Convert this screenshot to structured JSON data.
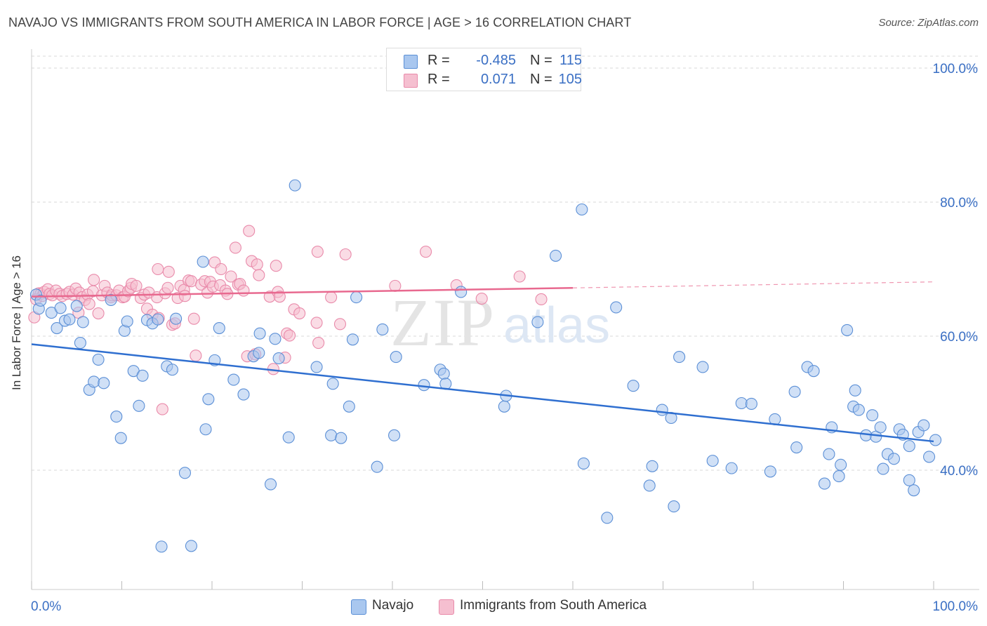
{
  "title": "NAVAJO VS IMMIGRANTS FROM SOUTH AMERICA IN LABOR FORCE | AGE > 16 CORRELATION CHART",
  "source": "Source: ZipAtlas.com",
  "watermark": {
    "zip": "ZIP",
    "atlas": "atlas"
  },
  "colors": {
    "navajo_fill": "#a9c7ef",
    "navajo_stroke": "#5b8fd6",
    "navajo_line": "#2f6fd0",
    "sa_fill": "#f5bfd0",
    "sa_stroke": "#e98aaa",
    "sa_line": "#e8698f",
    "axis_text": "#3a6fc4",
    "grid": "#d9d9d9"
  },
  "legend": {
    "rows": [
      {
        "r_key": "R =",
        "r_value": "-0.485",
        "n_key": "N =",
        "n_value": "115"
      },
      {
        "r_key": "R =",
        "r_value": "0.071",
        "n_key": "N =",
        "n_value": "105"
      }
    ]
  },
  "bottom_legend": [
    "Navajo",
    "Immigrants from South America"
  ],
  "chart_data": {
    "type": "scatter",
    "title": "NAVAJO VS IMMIGRANTS FROM SOUTH AMERICA IN LABOR FORCE | AGE > 16 CORRELATION CHART",
    "xlabel": "",
    "ylabel": "In Labor Force | Age > 16",
    "xlim": [
      0,
      100
    ],
    "ylim": [
      22,
      102
    ],
    "x_tick_labels": [
      "0.0%",
      "100.0%"
    ],
    "y_ticks": [
      40,
      60,
      80,
      100
    ],
    "y_tick_labels": [
      "40.0%",
      "60.0%",
      "80.0%",
      "100.0%"
    ],
    "grid": true,
    "legend_position": "top-center",
    "series": [
      {
        "name": "Navajo",
        "trend": {
          "x": [
            0,
            100
          ],
          "y": [
            58.8,
            44.3
          ]
        },
        "points": [
          [
            0.5,
            66.2
          ],
          [
            0.8,
            64.1
          ],
          [
            1,
            65.3
          ],
          [
            2.2,
            63.5
          ],
          [
            2.8,
            61.2
          ],
          [
            3.2,
            64.2
          ],
          [
            3.7,
            62.3
          ],
          [
            4.2,
            62.5
          ],
          [
            5,
            64.5
          ],
          [
            5.4,
            59
          ],
          [
            5.7,
            62.1
          ],
          [
            6.4,
            52
          ],
          [
            6.9,
            53.2
          ],
          [
            7.4,
            56.5
          ],
          [
            8,
            53
          ],
          [
            8.8,
            65.4
          ],
          [
            9.4,
            48
          ],
          [
            9.9,
            44.8
          ],
          [
            10.3,
            60.8
          ],
          [
            10.6,
            62.2
          ],
          [
            11.3,
            54.8
          ],
          [
            11.9,
            49.6
          ],
          [
            12.3,
            54.1
          ],
          [
            12.8,
            62.4
          ],
          [
            13.4,
            61.9
          ],
          [
            14,
            62.5
          ],
          [
            14.4,
            28.6
          ],
          [
            15,
            55.5
          ],
          [
            15.6,
            55
          ],
          [
            16,
            62.6
          ],
          [
            17,
            39.6
          ],
          [
            17.7,
            28.7
          ],
          [
            19,
            71.1
          ],
          [
            19.3,
            46.1
          ],
          [
            19.6,
            50.6
          ],
          [
            20.3,
            56.4
          ],
          [
            20.8,
            61.2
          ],
          [
            22.4,
            53.5
          ],
          [
            23.5,
            51.3
          ],
          [
            24.6,
            57
          ],
          [
            25.2,
            57.5
          ],
          [
            25.3,
            60.4
          ],
          [
            26.5,
            37.9
          ],
          [
            27,
            59.6
          ],
          [
            27.4,
            56.7
          ],
          [
            28.5,
            44.9
          ],
          [
            29.2,
            82.5
          ],
          [
            31.6,
            55.4
          ],
          [
            33.2,
            45.2
          ],
          [
            33.4,
            52.9
          ],
          [
            34.3,
            44.8
          ],
          [
            35.2,
            49.5
          ],
          [
            35.6,
            59.5
          ],
          [
            36,
            65.8
          ],
          [
            38.3,
            40.5
          ],
          [
            38.9,
            61
          ],
          [
            40.2,
            45.2
          ],
          [
            40.4,
            56.9
          ],
          [
            43.5,
            52.7
          ],
          [
            45.3,
            55
          ],
          [
            45.7,
            54.4
          ],
          [
            45.9,
            52.9
          ],
          [
            47.6,
            66.6
          ],
          [
            52.4,
            49.5
          ],
          [
            52.6,
            51.1
          ],
          [
            56.1,
            62.1
          ],
          [
            58.1,
            72
          ],
          [
            61,
            78.9
          ],
          [
            61.2,
            41
          ],
          [
            63.8,
            32.9
          ],
          [
            64.8,
            64.3
          ],
          [
            66.7,
            52.6
          ],
          [
            68.5,
            37.7
          ],
          [
            68.8,
            40.6
          ],
          [
            69.9,
            49
          ],
          [
            70.9,
            47.8
          ],
          [
            71.2,
            34.6
          ],
          [
            71.8,
            56.9
          ],
          [
            74.4,
            55.4
          ],
          [
            75.5,
            41.4
          ],
          [
            77.6,
            40.3
          ],
          [
            78.7,
            50
          ],
          [
            79.8,
            49.9
          ],
          [
            81.9,
            39.8
          ],
          [
            82.4,
            47.6
          ],
          [
            84.6,
            51.7
          ],
          [
            84.8,
            43.4
          ],
          [
            86,
            55.4
          ],
          [
            86.7,
            54.8
          ],
          [
            87.9,
            38
          ],
          [
            88.4,
            42.4
          ],
          [
            88.7,
            46.4
          ],
          [
            89.5,
            39.1
          ],
          [
            89.7,
            40.8
          ],
          [
            90.4,
            60.9
          ],
          [
            91.1,
            49.5
          ],
          [
            91.3,
            51.9
          ],
          [
            91.7,
            49
          ],
          [
            92.5,
            45.2
          ],
          [
            93.2,
            48.2
          ],
          [
            93.6,
            45
          ],
          [
            94.1,
            46.4
          ],
          [
            94.4,
            40.2
          ],
          [
            94.9,
            42.4
          ],
          [
            95.6,
            41.7
          ],
          [
            96.2,
            46.1
          ],
          [
            96.6,
            45.3
          ],
          [
            97.3,
            38.5
          ],
          [
            97.3,
            43.6
          ],
          [
            97.8,
            37
          ],
          [
            98.3,
            45.7
          ],
          [
            98.9,
            46.7
          ],
          [
            99.5,
            42
          ],
          [
            100.2,
            44.5
          ]
        ]
      },
      {
        "name": "Immigrants from South America",
        "trend": {
          "x": [
            0,
            60
          ],
          "y": [
            65.9,
            67.2
          ]
        },
        "trend_extension": {
          "x": [
            60,
            100
          ],
          "y": [
            67.2,
            68.1
          ]
        },
        "points": [
          [
            0.3,
            62.8
          ],
          [
            0.5,
            65.5
          ],
          [
            0.8,
            66.4
          ],
          [
            1,
            66.3
          ],
          [
            1.2,
            66
          ],
          [
            1.4,
            66.6
          ],
          [
            1.8,
            67
          ],
          [
            2,
            66.3
          ],
          [
            2.3,
            66.1
          ],
          [
            2.7,
            66.8
          ],
          [
            3.1,
            66.3
          ],
          [
            3.4,
            66
          ],
          [
            3.9,
            66.3
          ],
          [
            4.2,
            66.6
          ],
          [
            4.6,
            66.2
          ],
          [
            4.9,
            67.1
          ],
          [
            5.2,
            63.5
          ],
          [
            5.3,
            66.5
          ],
          [
            5.6,
            65.8
          ],
          [
            5.9,
            65.4
          ],
          [
            6.2,
            66.2
          ],
          [
            6.4,
            64.8
          ],
          [
            6.8,
            66.7
          ],
          [
            6.9,
            68.4
          ],
          [
            7.4,
            63.4
          ],
          [
            7.8,
            66.1
          ],
          [
            8.1,
            67.5
          ],
          [
            8.4,
            66.5
          ],
          [
            8.8,
            65.8
          ],
          [
            8.9,
            66.1
          ],
          [
            9.4,
            66.1
          ],
          [
            9.7,
            66.8
          ],
          [
            10.1,
            65.8
          ],
          [
            10.3,
            65.9
          ],
          [
            10.7,
            66.7
          ],
          [
            11,
            67.2
          ],
          [
            11.1,
            67.8
          ],
          [
            11.6,
            67.5
          ],
          [
            12.1,
            65.7
          ],
          [
            12.5,
            66.2
          ],
          [
            12.8,
            64.1
          ],
          [
            13,
            66.5
          ],
          [
            13.4,
            63.2
          ],
          [
            13.9,
            65.8
          ],
          [
            14,
            70
          ],
          [
            14.1,
            62.7
          ],
          [
            14.5,
            49.1
          ],
          [
            14.8,
            66.4
          ],
          [
            15.1,
            67.2
          ],
          [
            15.2,
            69.6
          ],
          [
            15.6,
            61.7
          ],
          [
            15.9,
            61.9
          ],
          [
            16.2,
            65.7
          ],
          [
            16.5,
            67.5
          ],
          [
            16.9,
            66.9
          ],
          [
            17,
            66
          ],
          [
            17.4,
            68.3
          ],
          [
            17.7,
            68.2
          ],
          [
            18,
            62.6
          ],
          [
            18.2,
            57.1
          ],
          [
            18.8,
            67.7
          ],
          [
            19.2,
            68.2
          ],
          [
            19.5,
            66.5
          ],
          [
            19.8,
            68.1
          ],
          [
            20.1,
            67.4
          ],
          [
            20.3,
            71
          ],
          [
            20.9,
            67.6
          ],
          [
            21,
            70
          ],
          [
            21.5,
            66.8
          ],
          [
            21.7,
            66.3
          ],
          [
            22.1,
            68.9
          ],
          [
            22.6,
            73.2
          ],
          [
            22.9,
            67.7
          ],
          [
            23.1,
            67.8
          ],
          [
            23.5,
            66.8
          ],
          [
            23.9,
            57
          ],
          [
            24.1,
            75.7
          ],
          [
            24.4,
            71.2
          ],
          [
            24.8,
            57.3
          ],
          [
            25,
            70.7
          ],
          [
            25.2,
            69.1
          ],
          [
            26.4,
            65.9
          ],
          [
            26.8,
            55.1
          ],
          [
            27.1,
            70.5
          ],
          [
            27.3,
            66.6
          ],
          [
            27.5,
            65.9
          ],
          [
            28.1,
            56.8
          ],
          [
            28.3,
            60.4
          ],
          [
            28.6,
            60.1
          ],
          [
            29.1,
            64
          ],
          [
            29.7,
            63.4
          ],
          [
            31.6,
            62
          ],
          [
            31.8,
            59
          ],
          [
            31.7,
            72.6
          ],
          [
            33.2,
            65.8
          ],
          [
            34.2,
            61.8
          ],
          [
            34.8,
            72.2
          ],
          [
            40.3,
            67.5
          ],
          [
            43.7,
            72.6
          ],
          [
            47.1,
            67.6
          ],
          [
            49.9,
            65.6
          ],
          [
            54.1,
            68.9
          ],
          [
            56.5,
            65.5
          ]
        ]
      }
    ]
  }
}
